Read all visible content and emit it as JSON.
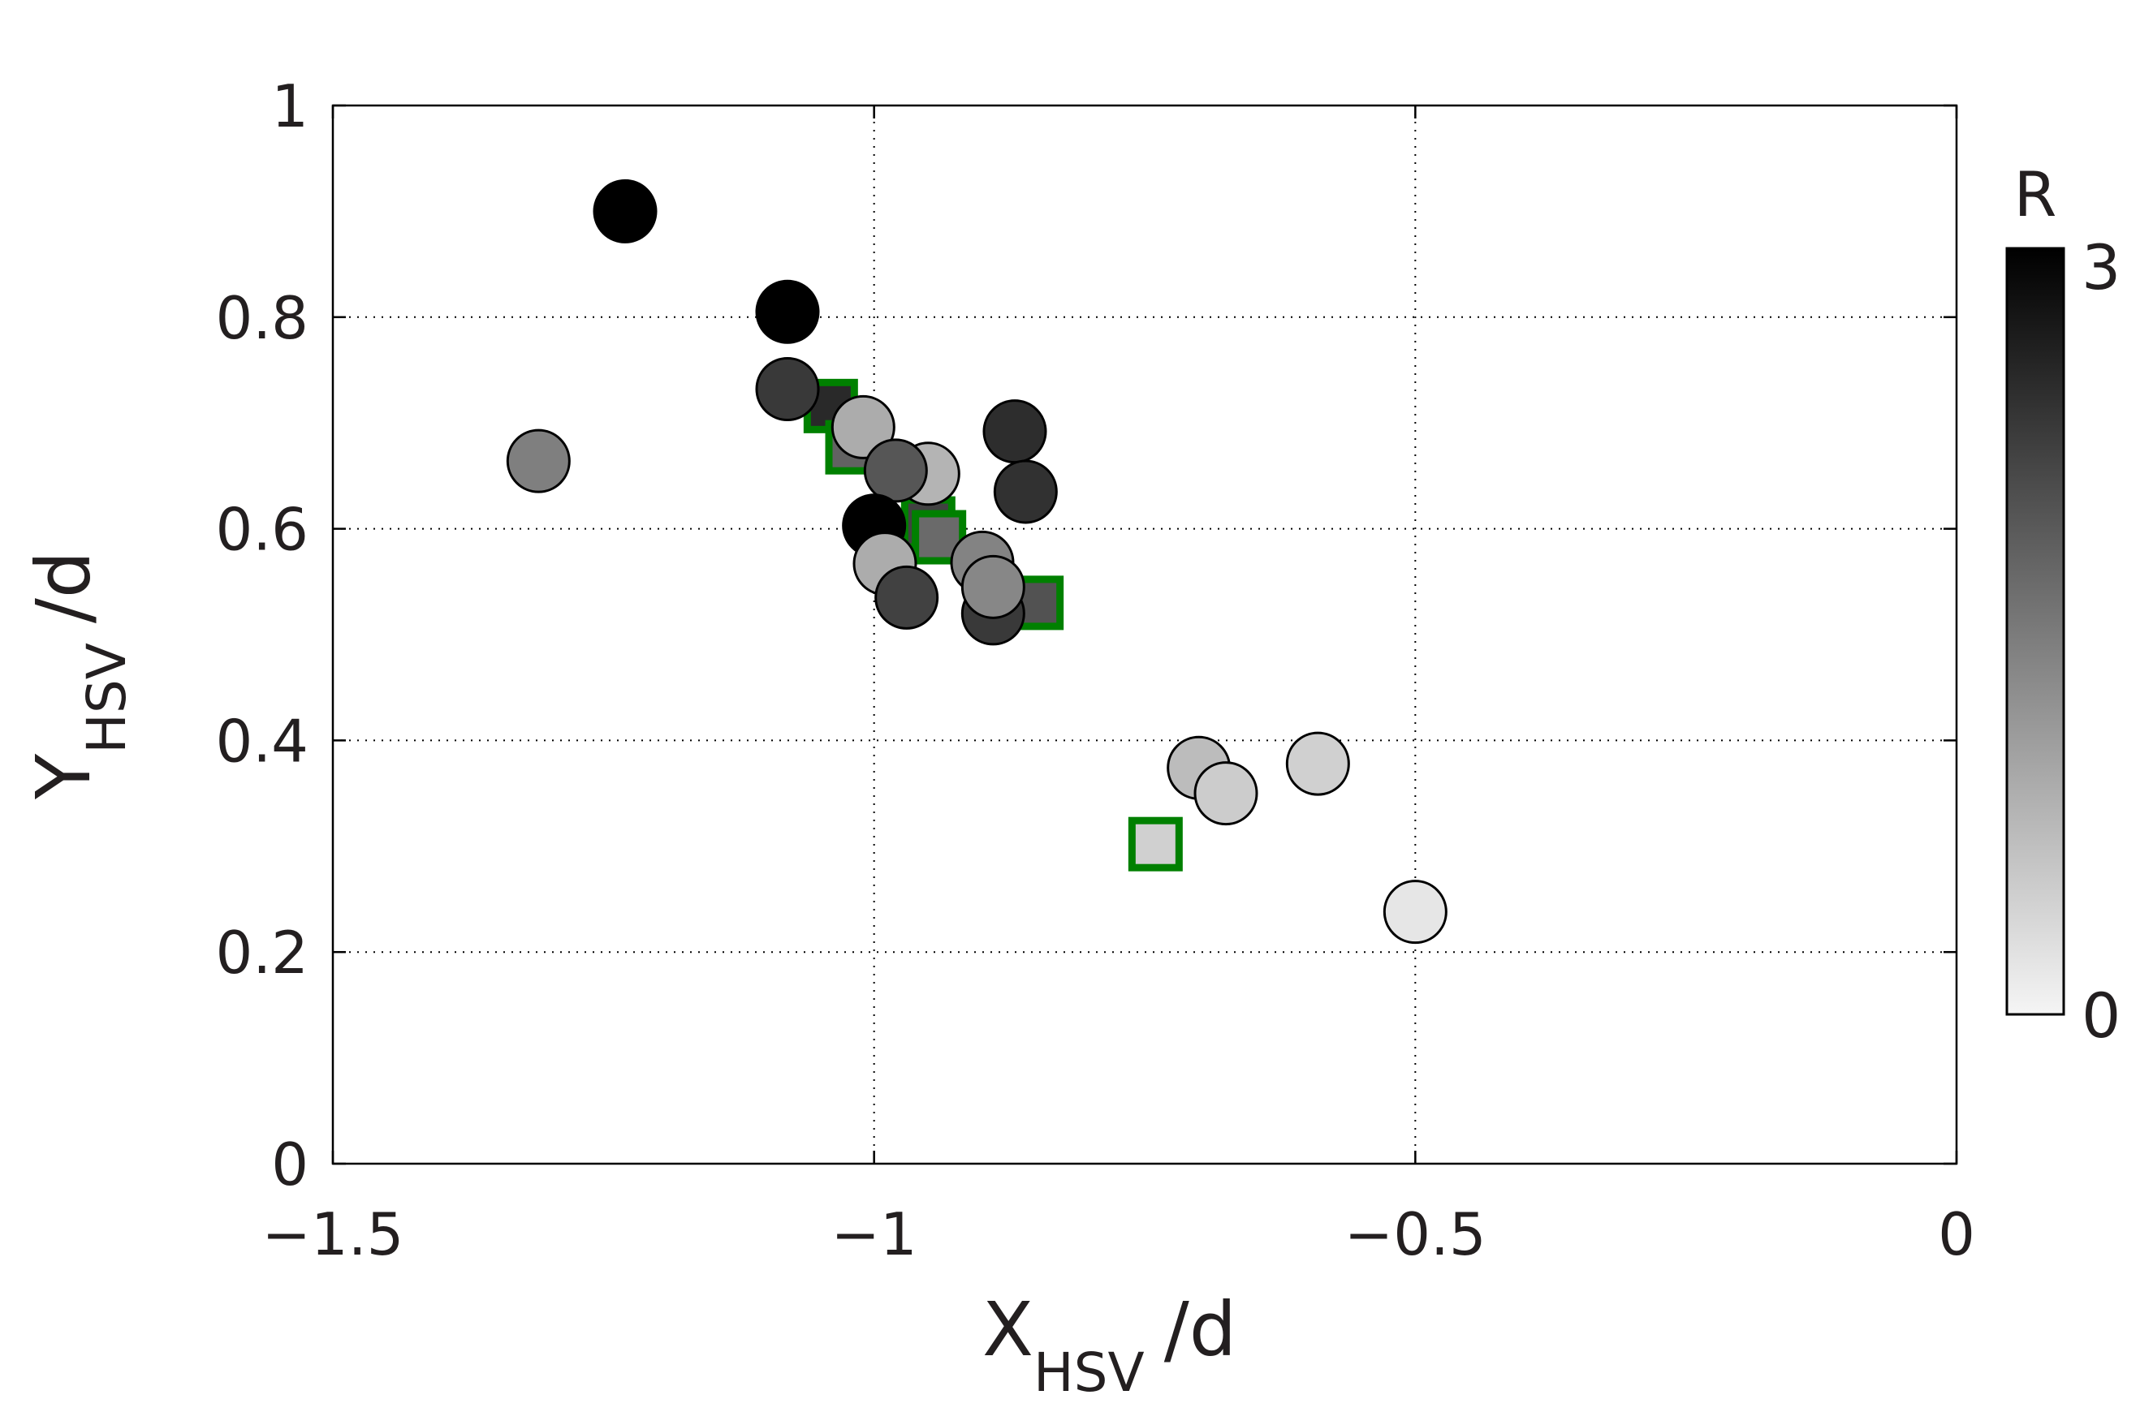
{
  "chart_data": {
    "type": "scatter",
    "title": "",
    "xlabel": {
      "main": "X",
      "sub": "HSV",
      "suffix": "/d"
    },
    "ylabel": {
      "main": "Y",
      "sub": "HSV",
      "suffix": "/d"
    },
    "xlim": [
      -1.5,
      0
    ],
    "ylim": [
      0,
      1
    ],
    "xticks": [
      -1.5,
      -1,
      -0.5,
      0
    ],
    "xtick_labels": [
      "−1.5",
      "−1",
      "−0.5",
      "0"
    ],
    "yticks": [
      0,
      0.2,
      0.4,
      0.6,
      0.8,
      1
    ],
    "ytick_labels": [
      "0",
      "0.2",
      "0.4",
      "0.6",
      "0.8",
      "1"
    ],
    "grid": true,
    "colorbar": {
      "label": "R",
      "min": 0,
      "max": 3,
      "min_label": "0",
      "max_label": "3",
      "colormap": "gray (white to black)"
    },
    "square_edge_color": "#008000",
    "circle_edge_color": "#000000",
    "series": [
      {
        "marker": "circle",
        "points": [
          {
            "x": -1.23,
            "y": 0.9,
            "r": 3.0
          },
          {
            "x": -1.08,
            "y": 0.805,
            "r": 3.0
          },
          {
            "x": -1.08,
            "y": 0.732,
            "r": 2.3
          },
          {
            "x": -1.31,
            "y": 0.664,
            "r": 1.45
          },
          {
            "x": -1.01,
            "y": 0.696,
            "r": 0.9
          },
          {
            "x": -0.95,
            "y": 0.652,
            "r": 0.8
          },
          {
            "x": -0.98,
            "y": 0.655,
            "r": 1.95
          },
          {
            "x": -1.0,
            "y": 0.603,
            "r": 3.0
          },
          {
            "x": -0.99,
            "y": 0.567,
            "r": 0.9
          },
          {
            "x": -0.97,
            "y": 0.535,
            "r": 2.2
          },
          {
            "x": -0.9,
            "y": 0.568,
            "r": 1.4
          },
          {
            "x": -0.89,
            "y": 0.52,
            "r": 2.3
          },
          {
            "x": -0.89,
            "y": 0.545,
            "r": 1.35
          },
          {
            "x": -0.87,
            "y": 0.692,
            "r": 2.45
          },
          {
            "x": -0.86,
            "y": 0.635,
            "r": 2.4
          },
          {
            "x": -0.7,
            "y": 0.374,
            "r": 0.7
          },
          {
            "x": -0.675,
            "y": 0.35,
            "r": 0.5
          },
          {
            "x": -0.59,
            "y": 0.378,
            "r": 0.45
          },
          {
            "x": -0.5,
            "y": 0.238,
            "r": 0.18
          }
        ]
      },
      {
        "marker": "square",
        "points": [
          {
            "x": -1.04,
            "y": 0.716,
            "r": 2.5
          },
          {
            "x": -1.02,
            "y": 0.677,
            "r": 1.8
          },
          {
            "x": -0.99,
            "y": 0.583,
            "r": 1.5
          },
          {
            "x": -0.95,
            "y": 0.605,
            "r": 2.2
          },
          {
            "x": -0.94,
            "y": 0.592,
            "r": 1.7
          },
          {
            "x": -0.85,
            "y": 0.53,
            "r": 2.0
          },
          {
            "x": -0.74,
            "y": 0.302,
            "r": 0.45
          }
        ]
      }
    ]
  }
}
